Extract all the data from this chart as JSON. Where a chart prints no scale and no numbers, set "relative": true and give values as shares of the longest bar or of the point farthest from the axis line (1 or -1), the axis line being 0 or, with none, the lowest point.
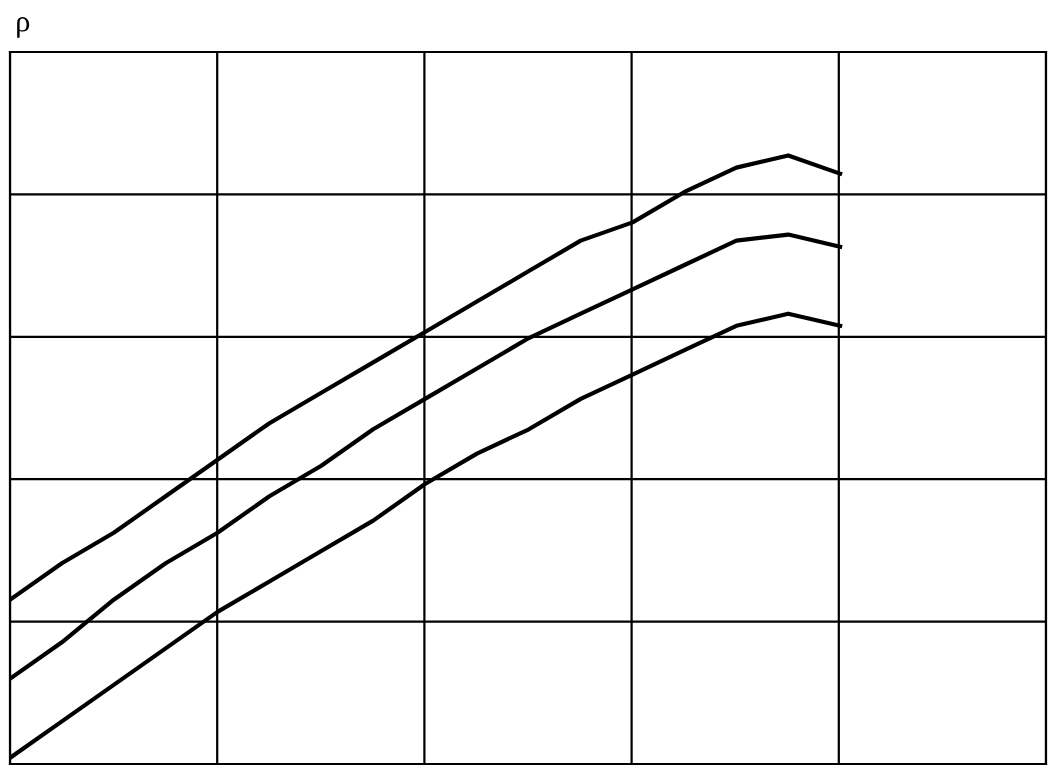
{
  "chart_data": {
    "type": "line",
    "ylabel": "ρ",
    "relative": true,
    "grid": true,
    "legend": false,
    "line_style": "solid",
    "categories": [
      null,
      null,
      null,
      null,
      null,
      null,
      null,
      null,
      null,
      null,
      null,
      null,
      null,
      null,
      null,
      null,
      null
    ],
    "series": [
      {
        "color": "#000000",
        "values": [
          0.27,
          0.33,
          0.38,
          0.44,
          0.5,
          0.56,
          0.61,
          0.66,
          0.71,
          0.76,
          0.81,
          0.86,
          0.89,
          0.94,
          0.98,
          1,
          0.97
        ]
      },
      {
        "color": "#000000",
        "values": [
          0.14,
          0.2,
          0.27,
          0.33,
          0.38,
          0.44,
          0.49,
          0.55,
          0.6,
          0.65,
          0.7,
          0.74,
          0.78,
          0.82,
          0.86,
          0.87,
          0.85
        ]
      },
      {
        "color": "#000000",
        "values": [
          0.01,
          0.07,
          0.13,
          0.19,
          0.25,
          0.3,
          0.35,
          0.4,
          0.46,
          0.51,
          0.55,
          0.6,
          0.64,
          0.68,
          0.72,
          0.74,
          0.72
        ]
      }
    ]
  }
}
